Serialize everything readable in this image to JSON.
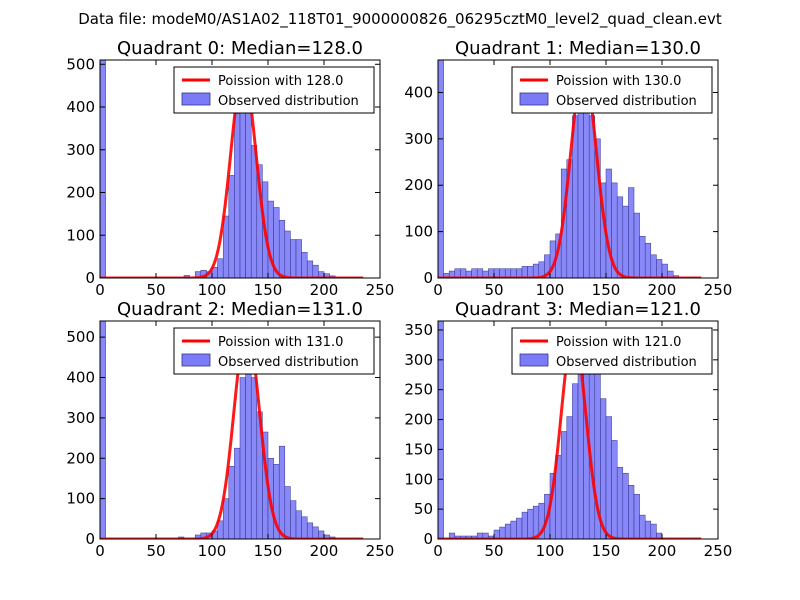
{
  "figure_title": "Data file: modeM0/AS1A02_118T01_9000000826_06295cztM0_level2_quad_clean.evt",
  "colors": {
    "poisson": "#ff0000",
    "bars_fill": "#7b7bf7",
    "bars_edge": "#33338a"
  },
  "chart_data": [
    {
      "type": "bar",
      "title": "Quadrant 0: Median=128.0",
      "xlim": [
        0,
        250
      ],
      "ylim": [
        0,
        510
      ],
      "xticks": [
        "0",
        "50",
        "100",
        "150",
        "200",
        "250"
      ],
      "yticks": [
        "0",
        "100",
        "200",
        "300",
        "400",
        "500"
      ],
      "ytick_values": [
        0,
        100,
        200,
        300,
        400,
        500
      ],
      "legend": [
        "Poission with 128.0",
        "Observed distribution"
      ],
      "legend_position": "top-right",
      "bin_width": 5,
      "bins": [
        [
          0,
          510
        ],
        [
          75,
          6
        ],
        [
          85,
          15
        ],
        [
          90,
          18
        ],
        [
          95,
          15
        ],
        [
          100,
          25
        ],
        [
          105,
          45
        ],
        [
          110,
          145
        ],
        [
          115,
          240
        ],
        [
          120,
          385
        ],
        [
          125,
          485
        ],
        [
          130,
          390
        ],
        [
          135,
          310
        ],
        [
          140,
          265
        ],
        [
          145,
          225
        ],
        [
          150,
          180
        ],
        [
          155,
          165
        ],
        [
          160,
          135
        ],
        [
          165,
          110
        ],
        [
          170,
          90
        ],
        [
          175,
          90
        ],
        [
          180,
          60
        ],
        [
          185,
          40
        ],
        [
          190,
          30
        ],
        [
          195,
          15
        ],
        [
          200,
          10
        ],
        [
          205,
          5
        ]
      ],
      "poisson_mean": 128.0,
      "poisson_peak": 480
    },
    {
      "type": "bar",
      "title": "Quadrant 1: Median=130.0",
      "xlim": [
        0,
        250
      ],
      "ylim": [
        0,
        470
      ],
      "xticks": [
        "0",
        "50",
        "100",
        "150",
        "200",
        "250"
      ],
      "yticks": [
        "0",
        "100",
        "200",
        "300",
        "400"
      ],
      "ytick_values": [
        0,
        100,
        200,
        300,
        400
      ],
      "legend": [
        "Poission with 130.0",
        "Observed distribution"
      ],
      "legend_position": "top-right",
      "bin_width": 5,
      "bins": [
        [
          0,
          470
        ],
        [
          5,
          10
        ],
        [
          10,
          15
        ],
        [
          15,
          20
        ],
        [
          20,
          20
        ],
        [
          25,
          15
        ],
        [
          30,
          20
        ],
        [
          35,
          20
        ],
        [
          40,
          15
        ],
        [
          45,
          20
        ],
        [
          50,
          20
        ],
        [
          55,
          20
        ],
        [
          60,
          20
        ],
        [
          65,
          20
        ],
        [
          70,
          20
        ],
        [
          75,
          25
        ],
        [
          80,
          25
        ],
        [
          85,
          30
        ],
        [
          90,
          35
        ],
        [
          95,
          50
        ],
        [
          100,
          80
        ],
        [
          105,
          95
        ],
        [
          110,
          235
        ],
        [
          115,
          255
        ],
        [
          120,
          350
        ],
        [
          125,
          430
        ],
        [
          130,
          400
        ],
        [
          135,
          350
        ],
        [
          140,
          300
        ],
        [
          145,
          205
        ],
        [
          150,
          235
        ],
        [
          155,
          205
        ],
        [
          160,
          175
        ],
        [
          165,
          155
        ],
        [
          170,
          195
        ],
        [
          175,
          140
        ],
        [
          180,
          90
        ],
        [
          185,
          75
        ],
        [
          190,
          50
        ],
        [
          195,
          40
        ],
        [
          200,
          30
        ],
        [
          205,
          15
        ],
        [
          210,
          5
        ]
      ],
      "poisson_mean": 130.0,
      "poisson_peak": 450
    },
    {
      "type": "bar",
      "title": "Quadrant 2: Median=131.0",
      "xlim": [
        0,
        250
      ],
      "ylim": [
        0,
        540
      ],
      "xticks": [
        "0",
        "50",
        "100",
        "150",
        "200",
        "250"
      ],
      "yticks": [
        "0",
        "100",
        "200",
        "300",
        "400",
        "500"
      ],
      "ytick_values": [
        0,
        100,
        200,
        300,
        400,
        500
      ],
      "legend": [
        "Poission with 131.0",
        "Observed distribution"
      ],
      "legend_position": "top-right",
      "bin_width": 5,
      "bins": [
        [
          0,
          540
        ],
        [
          70,
          5
        ],
        [
          85,
          10
        ],
        [
          90,
          15
        ],
        [
          95,
          15
        ],
        [
          100,
          20
        ],
        [
          105,
          45
        ],
        [
          110,
          100
        ],
        [
          115,
          180
        ],
        [
          120,
          225
        ],
        [
          125,
          400
        ],
        [
          130,
          500
        ],
        [
          135,
          400
        ],
        [
          140,
          315
        ],
        [
          145,
          265
        ],
        [
          150,
          200
        ],
        [
          155,
          185
        ],
        [
          160,
          230
        ],
        [
          165,
          130
        ],
        [
          170,
          95
        ],
        [
          175,
          70
        ],
        [
          180,
          55
        ],
        [
          185,
          40
        ],
        [
          190,
          30
        ],
        [
          195,
          20
        ],
        [
          200,
          10
        ],
        [
          205,
          5
        ]
      ],
      "poisson_mean": 131.0,
      "poisson_peak": 520
    },
    {
      "type": "bar",
      "title": "Quadrant 3: Median=121.0",
      "xlim": [
        0,
        250
      ],
      "ylim": [
        0,
        365
      ],
      "xticks": [
        "0",
        "50",
        "100",
        "150",
        "200",
        "250"
      ],
      "yticks": [
        "0",
        "50",
        "100",
        "150",
        "200",
        "250",
        "300",
        "350"
      ],
      "ytick_values": [
        0,
        50,
        100,
        150,
        200,
        250,
        300,
        350
      ],
      "legend": [
        "Poission with 121.0",
        "Observed distribution"
      ],
      "legend_position": "top-right",
      "bin_width": 5,
      "bins": [
        [
          0,
          365
        ],
        [
          10,
          10
        ],
        [
          15,
          5
        ],
        [
          20,
          5
        ],
        [
          25,
          5
        ],
        [
          30,
          5
        ],
        [
          35,
          10
        ],
        [
          40,
          10
        ],
        [
          45,
          5
        ],
        [
          50,
          15
        ],
        [
          55,
          20
        ],
        [
          60,
          25
        ],
        [
          65,
          30
        ],
        [
          70,
          35
        ],
        [
          75,
          45
        ],
        [
          80,
          50
        ],
        [
          85,
          55
        ],
        [
          90,
          60
        ],
        [
          95,
          75
        ],
        [
          100,
          110
        ],
        [
          105,
          140
        ],
        [
          110,
          180
        ],
        [
          115,
          205
        ],
        [
          120,
          260
        ],
        [
          125,
          320
        ],
        [
          130,
          350
        ],
        [
          135,
          310
        ],
        [
          140,
          290
        ],
        [
          145,
          235
        ],
        [
          150,
          205
        ],
        [
          155,
          165
        ],
        [
          160,
          120
        ],
        [
          165,
          110
        ],
        [
          170,
          90
        ],
        [
          175,
          75
        ],
        [
          180,
          40
        ],
        [
          185,
          30
        ],
        [
          190,
          25
        ],
        [
          195,
          10
        ]
      ],
      "poisson_mean": 121.0,
      "poisson_peak": 345
    }
  ]
}
